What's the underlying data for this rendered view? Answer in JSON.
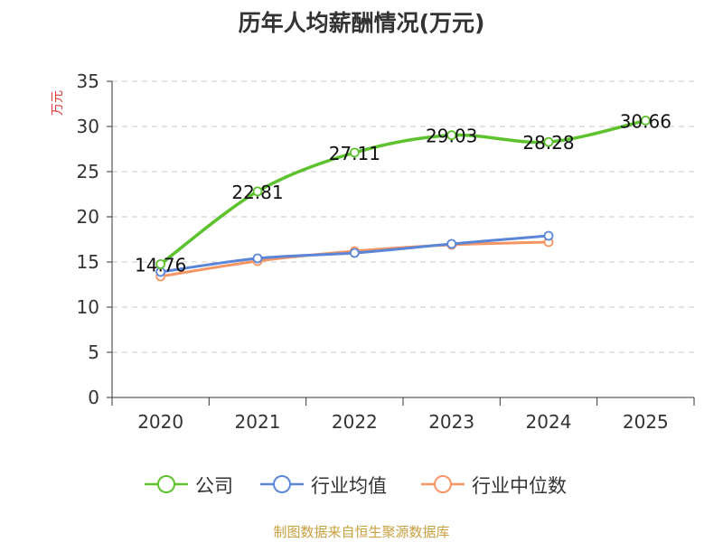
{
  "chart_data": {
    "type": "line",
    "title": "历年人均薪酬情况(万元)",
    "ylabel": "万元",
    "xlabel": "",
    "ylim": [
      0,
      35
    ],
    "yticks": [
      0,
      5,
      10,
      15,
      20,
      25,
      30,
      35
    ],
    "categories": [
      "2020",
      "2021",
      "2022",
      "2023",
      "2024",
      "2025"
    ],
    "grid": true,
    "legend_position": "bottom",
    "series": [
      {
        "name": "公司",
        "color": "#5cc22d",
        "values": [
          14.76,
          22.81,
          27.11,
          29.03,
          28.28,
          30.66
        ],
        "show_labels": true
      },
      {
        "name": "行业均值",
        "color": "#5b86d8",
        "values": [
          13.9,
          15.4,
          16.0,
          17.0,
          17.9,
          null
        ],
        "show_labels": false
      },
      {
        "name": "行业中位数",
        "color": "#f59563",
        "values": [
          13.4,
          15.1,
          16.2,
          16.9,
          17.2,
          null
        ],
        "show_labels": false
      }
    ]
  },
  "source_text": "制图数据来自恒生聚源数据库"
}
